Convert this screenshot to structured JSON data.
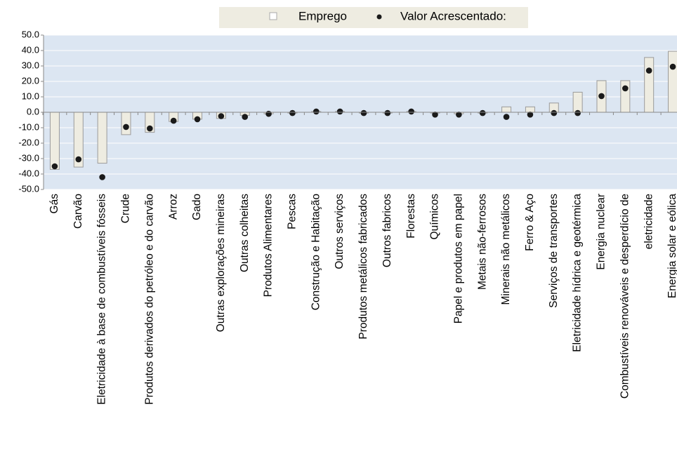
{
  "chart_data": {
    "type": "bar",
    "categories": [
      "Gás",
      "Carvão",
      "Eletricidade à base de combustíveis fósseis",
      "Crude",
      "Produtos derivados do petróleo e do carvão",
      "Arroz",
      "Gado",
      "Outras explorações mineiras",
      "Outras colheitas",
      "Produtos Alimentares",
      "Pescas",
      "Construção e Habitação",
      "Outros serviços",
      "Produtos metálicos fabricados",
      "Outros fabricos",
      "Florestas",
      "Químicos",
      "Papel e produtos em papel",
      "Metais não-ferrosos",
      "Minerais não metálicos",
      "Ferro & Aço",
      "Serviços de  transportes",
      "Eletricidade hídrica e geotérmica",
      "Energia nuclear",
      "Combustíveis renováveis e desperdício de",
      "eletricidade",
      "Energia solar e eólica"
    ],
    "series": [
      {
        "name": "Emprego",
        "color": "#eeece1",
        "values": [
          -37,
          -35.5,
          -33,
          -14.5,
          -13,
          -6,
          -4.5,
          -4,
          -2,
          -1,
          -0.5,
          0.5,
          0.5,
          -0.5,
          -0.5,
          0.5,
          -0.5,
          -1,
          -0.5,
          3.5,
          3.5,
          6,
          13,
          20.5,
          20.5,
          35.5,
          39.5
        ]
      },
      {
        "name": "Valor Acrescentado:",
        "color": "#1a1a1a",
        "values": [
          -35,
          -30.5,
          -42,
          -9.5,
          -10.5,
          -5.5,
          -4.5,
          -2.5,
          -3,
          -1,
          -0.5,
          0.5,
          0.5,
          -0.5,
          -0.5,
          0.5,
          -1.5,
          -1.5,
          -0.5,
          -3,
          -1.5,
          -0.5,
          -0.5,
          10.5,
          15.5,
          27,
          29.5
        ]
      }
    ],
    "ylim": [
      -50,
      50
    ],
    "yticks": [
      {
        "value": -50,
        "label": "-50.0"
      },
      {
        "value": -40,
        "label": "-40.0"
      },
      {
        "value": -30,
        "label": "-30.0"
      },
      {
        "value": -20,
        "label": "-20.0"
      },
      {
        "value": -10,
        "label": "-10.0"
      },
      {
        "value": 0,
        "label": "0.0"
      },
      {
        "value": 10,
        "label": "10.0"
      },
      {
        "value": 20,
        "label": "20.0"
      },
      {
        "value": 30,
        "label": "30.0"
      },
      {
        "value": 40,
        "label": "40.0"
      },
      {
        "value": 50,
        "label": "50.0"
      }
    ],
    "grid": true
  }
}
